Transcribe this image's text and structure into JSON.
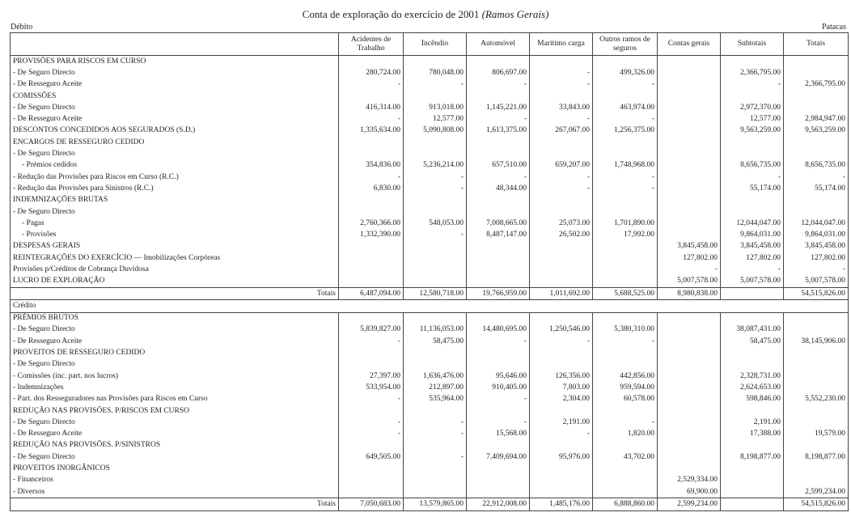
{
  "header": {
    "title": "Conta de exploração do exercício de 2001",
    "title_italic": "(Ramos Gerais)",
    "left": "Débito",
    "right": "Patacas"
  },
  "columns": [
    "Acidentes de Trabalho",
    "Incêndio",
    "Automóvel",
    "Marítimo carga",
    "Outros ramos de seguros",
    "Contas gerais",
    "Subtotais",
    "Totais"
  ],
  "debit": {
    "rows": [
      {
        "label": "PROVISÕES PARA RISCOS EM CURSO",
        "cells": [
          null,
          null,
          null,
          null,
          null,
          null,
          null,
          null
        ]
      },
      {
        "label": "- De Seguro Directo",
        "cells": [
          "280,724.00",
          "780,048.00",
          "806,697.00",
          "-",
          "499,326.00",
          null,
          "2,366,795.00",
          null
        ]
      },
      {
        "label": "- De Resseguro Aceite",
        "cells": [
          "-",
          "-",
          "-",
          "-",
          "-",
          null,
          "-",
          "2,366,795.00"
        ]
      },
      {
        "label": "COMISSÕES",
        "cells": [
          null,
          null,
          null,
          null,
          null,
          null,
          null,
          null
        ]
      },
      {
        "label": "- De Seguro Directo",
        "cells": [
          "416,314.00",
          "913,018.00",
          "1,145,221.00",
          "33,843.00",
          "463,974.00",
          null,
          "2,972,370.00",
          null
        ]
      },
      {
        "label": "- De Resseguro Aceite",
        "cells": [
          "-",
          "12,577.00",
          "-",
          "-",
          "-",
          null,
          "12,577.00",
          "2,984,947.00"
        ]
      },
      {
        "label": "DESCONTOS CONCEDIDOS AOS SEGURADOS (S.D.)",
        "cells": [
          "1,335,634.00",
          "5,090,808.00",
          "1,613,375.00",
          "267,067.00",
          "1,256,375.00",
          null,
          "9,563,259.00",
          "9,563,259.00"
        ]
      },
      {
        "label": "ENCARGOS DE RESSEGURO CEDIDO",
        "cells": [
          null,
          null,
          null,
          null,
          null,
          null,
          null,
          null
        ]
      },
      {
        "label": "- De Seguro Directo",
        "cells": [
          null,
          null,
          null,
          null,
          null,
          null,
          null,
          null
        ]
      },
      {
        "label": "- Prémios cedidos",
        "cells": [
          "354,836.00",
          "5,236,214.00",
          "657,510.00",
          "659,207.00",
          "1,748,968.00",
          null,
          "8,656,735.00",
          "8,656,735.00"
        ]
      },
      {
        "label": "- Redução das Provisões para Riscos em Curso (R.C.)",
        "cells": [
          "-",
          "-",
          "-",
          "-",
          "-",
          null,
          "-",
          "-"
        ]
      },
      {
        "label": "- Redução das Provisões para Sinistros (R.C.)",
        "cells": [
          "6,830.00",
          "-",
          "48,344.00",
          "-",
          "-",
          null,
          "55,174.00",
          "55,174.00"
        ]
      },
      {
        "label": "INDEMNIZAÇÕES BRUTAS",
        "cells": [
          null,
          null,
          null,
          null,
          null,
          null,
          null,
          null
        ]
      },
      {
        "label": "- De Seguro Directo",
        "cells": [
          null,
          null,
          null,
          null,
          null,
          null,
          null,
          null
        ]
      },
      {
        "label": "- Pagas",
        "cells": [
          "2,760,366.00",
          "548,053.00",
          "7,008,665.00",
          "25,073.00",
          "1,701,890.00",
          null,
          "12,044,047.00",
          "12,044,047.00"
        ]
      },
      {
        "label": "- Provisões",
        "cells": [
          "1,332,390.00",
          "-",
          "8,487,147.00",
          "26,502.00",
          "17,992.00",
          null,
          "9,864,031.00",
          "9,864,031.00"
        ]
      },
      {
        "label": "DESPESAS GERAIS",
        "cells": [
          null,
          null,
          null,
          null,
          null,
          "3,845,458.00",
          "3,845,458.00",
          "3,845,458.00"
        ]
      },
      {
        "label": "REINTEGRAÇÕES DO EXERCÍCIO — Imobilizações Corpóreas",
        "cells": [
          null,
          null,
          null,
          null,
          null,
          "127,802.00",
          "127,802.00",
          "127,802.00"
        ]
      },
      {
        "label": "Provisões p/Créditos de Cobrança Duvidosa",
        "cells": [
          null,
          null,
          null,
          null,
          null,
          "-",
          "-",
          "-"
        ]
      },
      {
        "label": "LUCRO DE EXPLORAÇÃO",
        "cells": [
          null,
          null,
          null,
          null,
          null,
          "5,007,578.00",
          "5,007,578.00",
          "5,007,578.00"
        ]
      }
    ],
    "totals": {
      "label": "Totais",
      "cells": [
        "6,487,094.00",
        "12,580,718.00",
        "19,766,959.00",
        "1,011,692.00",
        "5,688,525.00",
        "8,980,838.00",
        null,
        "54,515,826.00"
      ]
    }
  },
  "credit": {
    "heading": "Crédito",
    "rows": [
      {
        "label": "PRÉMIOS BRUTOS",
        "cells": [
          null,
          null,
          null,
          null,
          null,
          null,
          null,
          null
        ]
      },
      {
        "label": "- De Seguro Directo",
        "cells": [
          "5,839,827.00",
          "11,136,053.00",
          "14,480,695.00",
          "1,250,546.00",
          "5,380,310.00",
          null,
          "38,087,431.00",
          null
        ]
      },
      {
        "label": "- De Resseguro Aceite",
        "cells": [
          "-",
          "58,475.00",
          "-",
          "-",
          "-",
          null,
          "58,475.00",
          "38,145,906.00"
        ]
      },
      {
        "label": "PROVEITOS DE RESSEGURO CEDIDO",
        "cells": [
          null,
          null,
          null,
          null,
          null,
          null,
          null,
          null
        ]
      },
      {
        "label": "- De Seguro Directo",
        "cells": [
          null,
          null,
          null,
          null,
          null,
          null,
          null,
          null
        ]
      },
      {
        "label": "- Comissões (inc. part. nos lucros)",
        "cells": [
          "27,397.00",
          "1,636,476.00",
          "95,646.00",
          "126,356.00",
          "442,856.00",
          null,
          "2,328,731.00",
          null
        ]
      },
      {
        "label": "- Indemnizações",
        "cells": [
          "533,954.00",
          "212,897.00",
          "910,405.00",
          "7,803.00",
          "959,594.00",
          null,
          "2,624,653.00",
          null
        ]
      },
      {
        "label": "- Part. dos Resseguradores nas Provisões para Riscos em Curso",
        "cells": [
          "-",
          "535,964.00",
          "-",
          "2,304.00",
          "60,578.00",
          null,
          "598,846.00",
          "5,552,230.00"
        ]
      },
      {
        "label": "REDUÇÃO NAS PROVISÕES. P/RISCOS EM CURSO",
        "cells": [
          null,
          null,
          null,
          null,
          null,
          null,
          null,
          null
        ]
      },
      {
        "label": "- De Seguro Directo",
        "cells": [
          "-",
          "-",
          "-",
          "2,191.00",
          "-",
          null,
          "2,191.00",
          null
        ]
      },
      {
        "label": "- De Resseguro Aceite",
        "cells": [
          "-",
          "-",
          "15,568.00",
          "-",
          "1,820.00",
          null,
          "17,388.00",
          "19,579.00"
        ]
      },
      {
        "label": "REDUÇÃO NAS PROVISÕES. P/SINISTROS",
        "cells": [
          null,
          null,
          null,
          null,
          null,
          null,
          null,
          null
        ]
      },
      {
        "label": "- De Seguro Directo",
        "cells": [
          "649,505.00",
          "-",
          "7,409,694.00",
          "95,976.00",
          "43,702.00",
          null,
          "8,198,877.00",
          "8,198,877.00"
        ]
      },
      {
        "label": "PROVEITOS INORGÂNICOS",
        "cells": [
          null,
          null,
          null,
          null,
          null,
          null,
          null,
          null
        ]
      },
      {
        "label": "- Financeiros",
        "cells": [
          null,
          null,
          null,
          null,
          null,
          "2,529,334.00",
          null,
          null
        ]
      },
      {
        "label": "- Diversos",
        "cells": [
          null,
          null,
          null,
          null,
          null,
          "69,900.00",
          null,
          "2,599,234.00"
        ]
      }
    ],
    "totals": {
      "label": "Totais",
      "cells": [
        "7,050,683.00",
        "13,579,865.00",
        "22,912,008.00",
        "1,485,176.00",
        "6,888,860.00",
        "2,599,234.00",
        null,
        "54,515,826.00"
      ]
    }
  }
}
